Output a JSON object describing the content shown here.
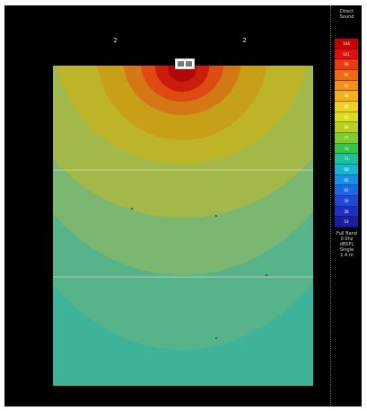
{
  "legend": {
    "title": "Direct\nSound",
    "note": "Full Band\n0.0hz\ndBSPL\nSingle\n1.4 m",
    "scale": [
      {
        "label": "104",
        "color": "#c80000"
      },
      {
        "label": "101",
        "color": "#e01010"
      },
      {
        "label": "98",
        "color": "#ec3a10"
      },
      {
        "label": "95",
        "color": "#f06a14"
      },
      {
        "label": "92",
        "color": "#f2901a"
      },
      {
        "label": "89",
        "color": "#f2b21e"
      },
      {
        "label": "86",
        "color": "#f0d020"
      },
      {
        "label": "83",
        "color": "#dcdc1e"
      },
      {
        "label": "80",
        "color": "#b6d01e"
      },
      {
        "label": "77",
        "color": "#7ccc2c"
      },
      {
        "label": "74",
        "color": "#34c44a"
      },
      {
        "label": "71",
        "color": "#1cc0a0"
      },
      {
        "label": "68",
        "color": "#18b4d8"
      },
      {
        "label": "65",
        "color": "#1890e8"
      },
      {
        "label": "62",
        "color": "#1c68e6"
      },
      {
        "label": "59",
        "color": "#2048d8"
      },
      {
        "label": "56",
        "color": "#2030c0"
      },
      {
        "label": "53",
        "color": "#1c1ca0"
      }
    ]
  },
  "markers": [
    "2",
    "2"
  ],
  "contour_colors": {
    "outer": "#3fb29a",
    "band1": "#57b38a",
    "band2": "#7bb770",
    "band3": "#a2b94a",
    "band4": "#bdb428",
    "band5": "#c8a018",
    "band6": "#d47816",
    "band7": "#de4a12",
    "band8": "#cc1c0c",
    "band9": "#b00808"
  }
}
